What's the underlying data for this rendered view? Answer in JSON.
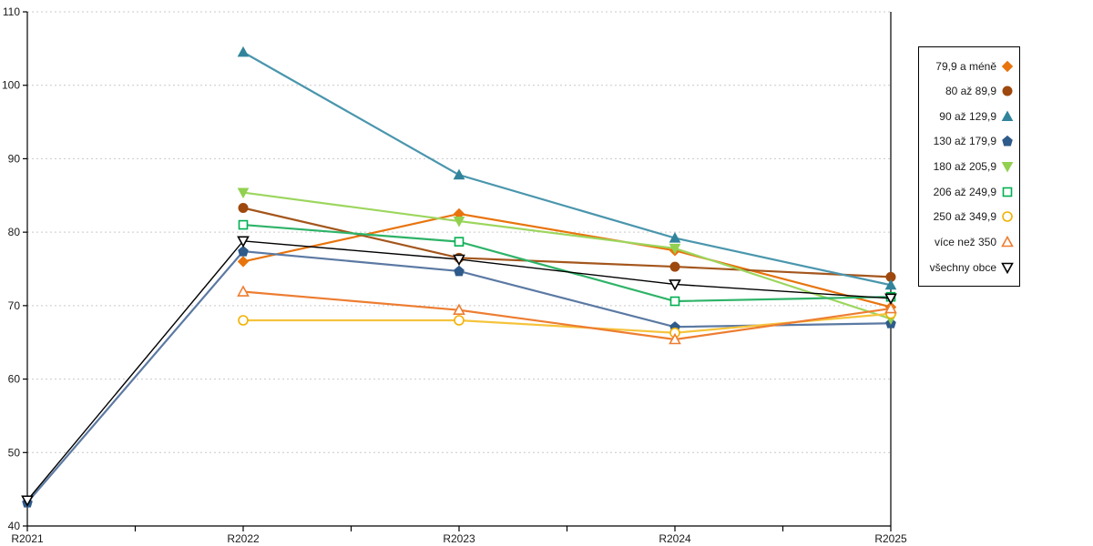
{
  "chart_data": {
    "type": "line",
    "title": "",
    "xlabel": "",
    "ylabel": "",
    "x_categories": [
      "R2021",
      "R2022",
      "R2023",
      "R2024",
      "R2025"
    ],
    "ylim": [
      40,
      110
    ],
    "yticks": [
      40,
      50,
      60,
      70,
      80,
      90,
      100,
      110
    ],
    "grid": "horizontal-dashed",
    "legend_position": "right",
    "series": [
      {
        "name": "79,9 a méně",
        "marker": "diamond",
        "marker_style": "filled",
        "color": "#e8740d",
        "line_color": "#e8740d",
        "values": [
          null,
          76.0,
          82.5,
          77.5,
          69.8
        ]
      },
      {
        "name": "80 až 89,9",
        "marker": "circle",
        "marker_style": "filled",
        "color": "#9e480e",
        "line_color": "#a4561c",
        "values": [
          null,
          83.3,
          76.5,
          75.3,
          73.9
        ]
      },
      {
        "name": "90 až 129,9",
        "marker": "triangle-up",
        "marker_style": "filled",
        "color": "#31849b",
        "line_color": "#4a96ad",
        "values": [
          null,
          104.5,
          87.8,
          79.2,
          72.8
        ]
      },
      {
        "name": "130 až 179,9",
        "marker": "pentagon",
        "marker_style": "filled",
        "color": "#2e5b8a",
        "line_color": "#5b79a3",
        "values": [
          43.2,
          77.4,
          74.7,
          67.1,
          67.6
        ]
      },
      {
        "name": "180 až 205,9",
        "marker": "triangle-down",
        "marker_style": "filled",
        "color": "#92d050",
        "line_color": "#9cd65e",
        "values": [
          null,
          85.4,
          81.5,
          77.8,
          68.2
        ]
      },
      {
        "name": "206 až 249,9",
        "marker": "square",
        "marker_style": "open",
        "color": "#00b050",
        "line_color": "#2eb368",
        "values": [
          null,
          81.0,
          78.7,
          70.6,
          71.2
        ]
      },
      {
        "name": "250 až 349,9",
        "marker": "circle",
        "marker_style": "open",
        "color": "#f2b200",
        "line_color": "#f5c33c",
        "values": [
          null,
          68.0,
          68.0,
          66.3,
          68.9
        ]
      },
      {
        "name": "více než 350",
        "marker": "triangle-up",
        "marker_style": "open",
        "color": "#ed7d31",
        "line_color": "#ed7d31",
        "values": [
          null,
          71.9,
          69.4,
          65.4,
          69.6
        ]
      },
      {
        "name": "všechny obce",
        "marker": "triangle-down",
        "marker_style": "open",
        "color": "#000000",
        "line_color": "#000000",
        "values": [
          43.5,
          78.8,
          76.3,
          72.9,
          71.0
        ]
      }
    ],
    "axis_color": "#000000",
    "gridline_color": "#c9c9c9"
  }
}
